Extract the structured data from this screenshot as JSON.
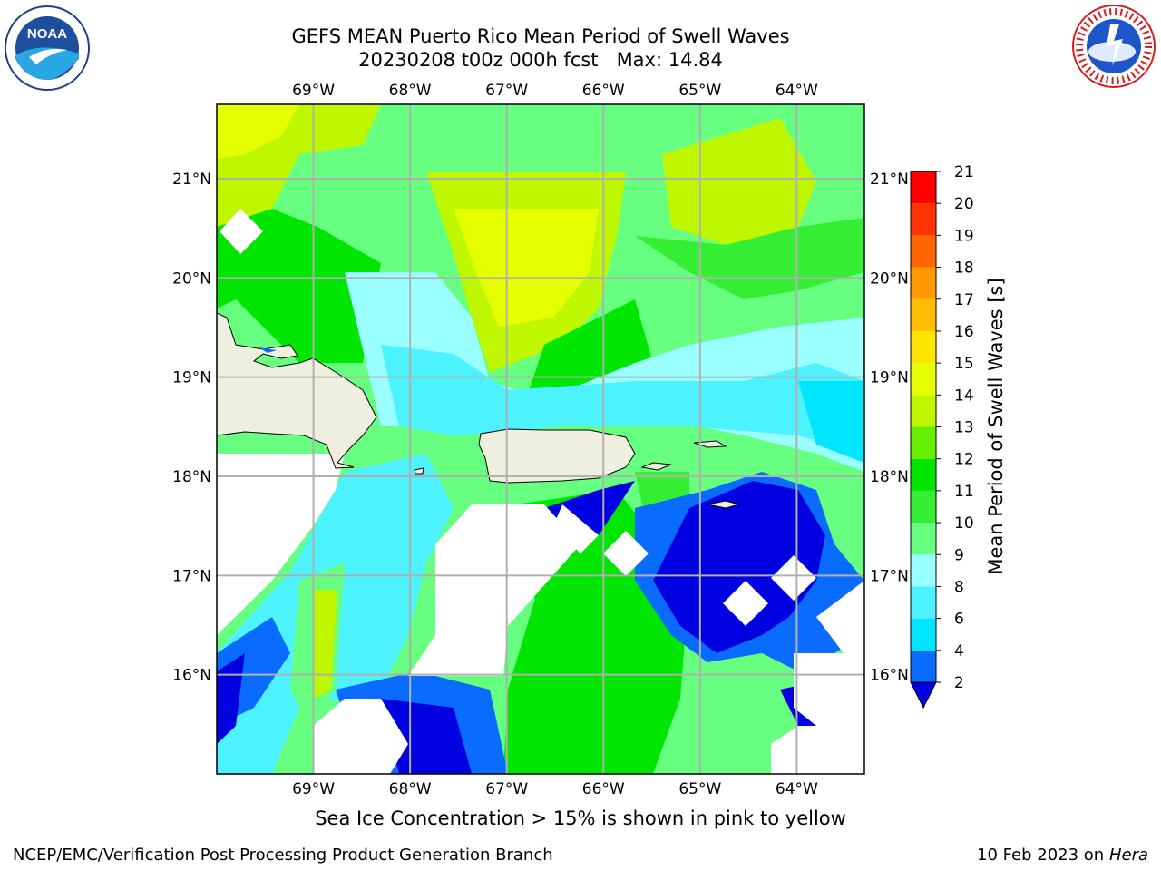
{
  "title": {
    "line1": "GEFS MEAN Puerto Rico Mean Period of Swell Waves",
    "line2": "20230208 t00z 000h fcst   Max: 14.84"
  },
  "note": "Sea Ice Concentration > 15% is shown in pink to yellow",
  "footer": {
    "left": "NCEP/EMC/Verification Post Processing Product Generation Branch",
    "date": "10 Feb 2023 on",
    "machine": "Hera"
  },
  "logos": {
    "left": "NOAA",
    "right": "NATIONAL WEATHER SERVICE"
  },
  "chart_data": {
    "type": "heatmap",
    "projection": "lat-lon map",
    "xlabel": "",
    "ylabel": "",
    "x_ticks": [
      "69°W",
      "68°W",
      "67°W",
      "66°W",
      "65°W",
      "64°W"
    ],
    "y_ticks": [
      "21°N",
      "20°N",
      "19°N",
      "18°N",
      "17°N",
      "16°N"
    ],
    "lon_range": [
      -70.0,
      -63.3
    ],
    "lat_range": [
      15.0,
      21.75
    ],
    "grid": true,
    "max_value": 14.84,
    "colorbar": {
      "label": "Mean Period of Swell Waves [s]",
      "levels": [
        2,
        4,
        6,
        8,
        9,
        10,
        11,
        12,
        13,
        14,
        15,
        16,
        17,
        18,
        19,
        20,
        21
      ],
      "colors": [
        "#0000e0",
        "#0a6cff",
        "#00e6ff",
        "#4df2ff",
        "#99ffff",
        "#66ff80",
        "#33ee33",
        "#00e600",
        "#66f000",
        "#bff700",
        "#e6ff00",
        "#ffe600",
        "#ffbf00",
        "#ff9900",
        "#ff6600",
        "#ff3300",
        "#ff0000"
      ],
      "extend": "min"
    },
    "regions": [
      {
        "name": "northwest",
        "value": 13.5
      },
      {
        "name": "north-central",
        "value": 14.2
      },
      {
        "name": "northeast",
        "value": 13.0
      },
      {
        "name": "around Puerto Rico",
        "value": 8.0
      },
      {
        "name": "south-central",
        "value": 10.5
      },
      {
        "name": "southeast",
        "value": 3.0
      },
      {
        "name": "southwest",
        "value": 7.5
      }
    ]
  }
}
